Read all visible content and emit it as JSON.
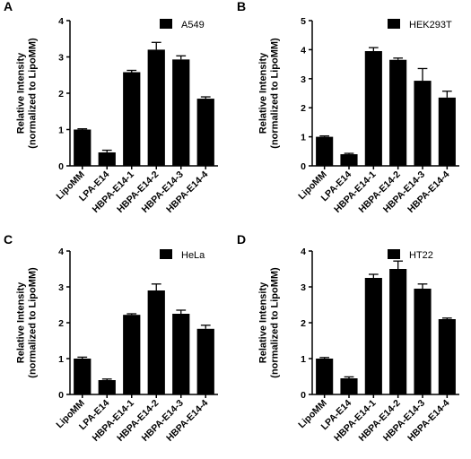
{
  "colors": {
    "bar": "#000000",
    "axis": "#000000",
    "background": "#ffffff"
  },
  "chart_data": [
    {
      "type": "bar",
      "panel": "A",
      "legend": "A549",
      "legend_placement": "top-right",
      "ylabel_line1": "Relative Intensity",
      "ylabel_line2": "(normalized to LipoMM)",
      "categories": [
        "LipoMM",
        "LPA-E14",
        "HBPA-E14-1",
        "HBPA-E14-2",
        "HBPA-E14-3",
        "HBPA-E14-4"
      ],
      "values": [
        1.0,
        0.37,
        2.58,
        3.2,
        2.93,
        1.85
      ],
      "errors": [
        0.02,
        0.06,
        0.05,
        0.2,
        0.1,
        0.05
      ],
      "ylim": [
        0,
        4
      ],
      "yticks": [
        0,
        1,
        2,
        3,
        4
      ],
      "grid": false
    },
    {
      "type": "bar",
      "panel": "B",
      "legend": "HEK293T",
      "legend_placement": "top-right",
      "ylabel_line1": "Relative Intensity",
      "ylabel_line2": "(normalized to LipoMM)",
      "categories": [
        "LipoMM",
        "LPA-E14",
        "HBPA-E14-1",
        "HBPA-E14-2",
        "HBPA-E14-3",
        "HBPA-E14-4"
      ],
      "values": [
        1.0,
        0.4,
        3.95,
        3.65,
        2.93,
        2.35
      ],
      "errors": [
        0.03,
        0.03,
        0.12,
        0.06,
        0.42,
        0.22
      ],
      "ylim": [
        0,
        5
      ],
      "yticks": [
        0,
        1,
        2,
        3,
        4,
        5
      ],
      "grid": false
    },
    {
      "type": "bar",
      "panel": "C",
      "legend": "HeLa",
      "legend_placement": "top-right",
      "ylabel_line1": "Relative Intensity",
      "ylabel_line2": "(normalized to LipoMM)",
      "categories": [
        "LipoMM",
        "LPA-E14",
        "HBPA-E14-1",
        "HBPA-E14-2",
        "HBPA-E14-3",
        "HBPA-E14-4"
      ],
      "values": [
        1.0,
        0.4,
        2.22,
        2.9,
        2.25,
        1.83
      ],
      "errors": [
        0.04,
        0.03,
        0.03,
        0.18,
        0.1,
        0.1
      ],
      "ylim": [
        0,
        4
      ],
      "yticks": [
        0,
        1,
        2,
        3,
        4
      ],
      "grid": false
    },
    {
      "type": "bar",
      "panel": "D",
      "legend": "HT22",
      "legend_placement": "top-right",
      "ylabel_line1": "Relative Intensity",
      "ylabel_line2": "(normalized to LipoMM)",
      "categories": [
        "LipoMM",
        "LPA-E14",
        "HBPA-E14-1",
        "HBPA-E14-2",
        "HBPA-E14-3",
        "HBPA-E14-4"
      ],
      "values": [
        1.0,
        0.45,
        3.25,
        3.5,
        2.95,
        2.1
      ],
      "errors": [
        0.03,
        0.04,
        0.1,
        0.22,
        0.13,
        0.03
      ],
      "ylim": [
        0,
        4
      ],
      "yticks": [
        0,
        1,
        2,
        3,
        4
      ],
      "grid": false
    }
  ]
}
